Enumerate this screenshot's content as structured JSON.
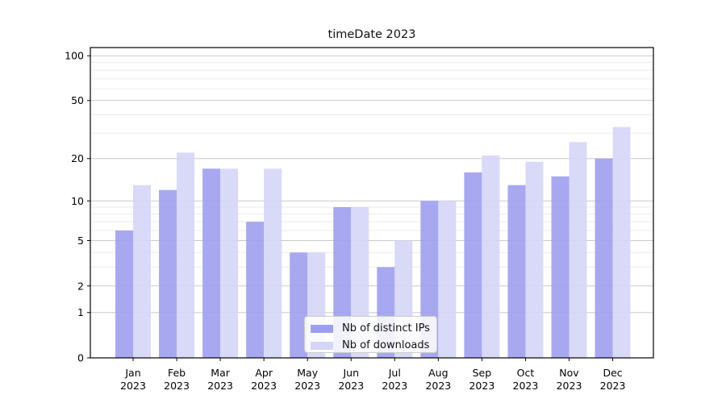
{
  "chart_data": {
    "type": "bar",
    "title": "timeDate 2023",
    "categories": [
      "Jan 2023",
      "Feb 2023",
      "Mar 2023",
      "Apr 2023",
      "May 2023",
      "Jun 2023",
      "Jul 2023",
      "Aug 2023",
      "Sep 2023",
      "Oct 2023",
      "Nov 2023",
      "Dec 2023"
    ],
    "series": [
      {
        "name": "Nb of distinct IPs",
        "color": "#9e9eef",
        "values": [
          6,
          12,
          17,
          7,
          4,
          9,
          3,
          10,
          16,
          13,
          15,
          20
        ]
      },
      {
        "name": "Nb of downloads",
        "color": "#d5d5f7",
        "values": [
          13,
          22,
          17,
          17,
          4,
          9,
          5,
          10,
          21,
          19,
          26,
          33
        ]
      }
    ],
    "xlabel": "",
    "ylabel": "",
    "yaxis": {
      "scale": "log1p",
      "ticks": [
        100,
        50,
        20,
        10,
        5,
        2,
        1,
        0
      ],
      "minor_gridlines": [
        3,
        4,
        6,
        7,
        8,
        9,
        30,
        40,
        60,
        70,
        80,
        90
      ],
      "ylim": [
        0,
        114
      ]
    },
    "grid": "on",
    "legend_position": "lower center"
  }
}
